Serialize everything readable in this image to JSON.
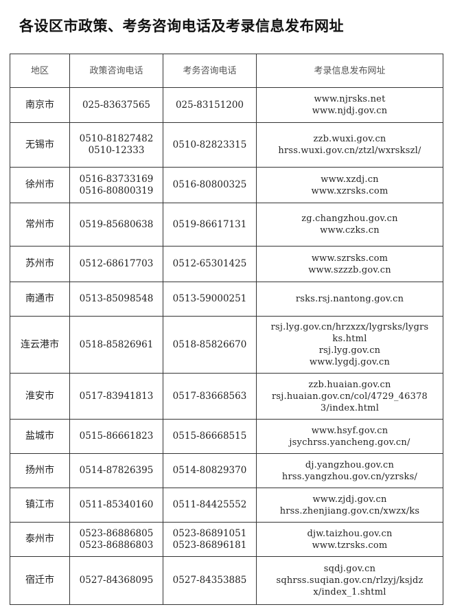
{
  "title": "各设区市政策、考务咨询电话及考录信息发布网址",
  "table": {
    "headers": [
      "地区",
      "政策咨询电话",
      "考务咨询电话",
      "考录信息发布网址"
    ],
    "rows": [
      {
        "region": "南京市",
        "policy": [
          "025-83637565"
        ],
        "exam": [
          "025-83151200"
        ],
        "urls": [
          "www.njrsks.net",
          "www.njdj.gov.cn"
        ]
      },
      {
        "region": "无锡市",
        "policy": [
          "0510-81827482",
          "0510-12333"
        ],
        "exam": [
          "0510-82823315"
        ],
        "urls": [
          "zzb.wuxi.gov.cn",
          "hrss.wuxi.gov.cn/ztzl/wxrskszl/"
        ]
      },
      {
        "region": "徐州市",
        "policy": [
          "0516-83733169",
          "0516-80800319"
        ],
        "exam": [
          "0516-80800325"
        ],
        "urls": [
          "www.xzdj.cn",
          "www.xzrsks.com"
        ]
      },
      {
        "region": "常州市",
        "policy": [
          "0519-85680638"
        ],
        "exam": [
          "0519-86617131"
        ],
        "urls": [
          "zg.changzhou.gov.cn",
          "www.czks.cn"
        ]
      },
      {
        "region": "苏州市",
        "policy": [
          "0512-68617703"
        ],
        "exam": [
          "0512-65301425"
        ],
        "urls": [
          "www.szrsks.com",
          "www.szzzb.gov.cn"
        ]
      },
      {
        "region": "南通市",
        "policy": [
          "0513-85098548"
        ],
        "exam": [
          "0513-59000251"
        ],
        "urls": [
          "rsks.rsj.nantong.gov.cn"
        ]
      },
      {
        "region": "连云港市",
        "policy": [
          "0518-85826961"
        ],
        "exam": [
          "0518-85826670"
        ],
        "urls": [
          "rsj.lyg.gov.cn/hrzxzx/lygrsks/lygrs",
          "ks.html",
          "rsj.lyg.gov.cn",
          "www.lygdj.gov.cn"
        ]
      },
      {
        "region": "淮安市",
        "policy": [
          "0517-83941813"
        ],
        "exam": [
          "0517-83668563"
        ],
        "urls": [
          "zzb.huaian.gov.cn",
          "rsj.huaian.gov.cn/col/4729_46378",
          "3/index.html"
        ]
      },
      {
        "region": "盐城市",
        "policy": [
          "0515-86661823"
        ],
        "exam": [
          "0515-86668515"
        ],
        "urls": [
          "www.hsyf.gov.cn",
          "jsychrss.yancheng.gov.cn/"
        ]
      },
      {
        "region": "扬州市",
        "policy": [
          "0514-87826395"
        ],
        "exam": [
          "0514-80829370"
        ],
        "urls": [
          "dj.yangzhou.gov.cn",
          "hrss.yangzhou.gov.cn/yzrsks/"
        ]
      },
      {
        "region": "镇江市",
        "policy": [
          "0511-85340160"
        ],
        "exam": [
          "0511-84425552"
        ],
        "urls": [
          "www.zjdj.gov.cn",
          "hrss.zhenjiang.gov.cn/xwzx/ks"
        ]
      },
      {
        "region": "泰州市",
        "policy": [
          "0523-86886805",
          "0523-86886803"
        ],
        "exam": [
          "0523-86891051",
          "0523-86896181"
        ],
        "urls": [
          "djw.taizhou.gov.cn",
          "www.tzrsks.com"
        ]
      },
      {
        "region": "宿迁市",
        "policy": [
          "0527-84368095"
        ],
        "exam": [
          "0527-84353885"
        ],
        "urls": [
          "sqdj.gov.cn",
          "sqhrss.suqian.gov.cn/rlzyj/ksjdz",
          "x/index_1.shtml"
        ]
      }
    ]
  }
}
